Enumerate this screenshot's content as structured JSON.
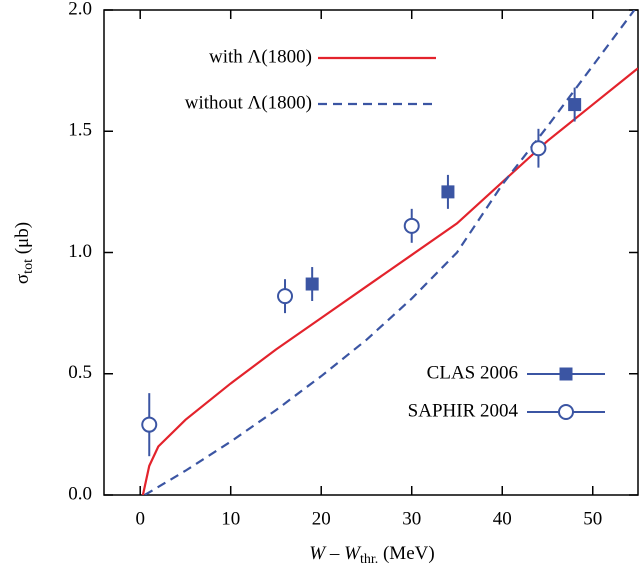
{
  "chart_data": {
    "type": "line",
    "xlabel": [
      "W",
      " – ",
      "W",
      "thr.",
      " (MeV)"
    ],
    "ylabel": [
      "σ",
      "tot",
      " (μb)"
    ],
    "xlim": [
      -4,
      55
    ],
    "ylim": [
      0,
      2.0
    ],
    "xticks": [
      0,
      10,
      20,
      30,
      40,
      50
    ],
    "yticks": [
      {
        "value": 0,
        "label": "0.0"
      },
      {
        "value": 0.5,
        "label": "0.5"
      },
      {
        "value": 1,
        "label": "1.0"
      },
      {
        "value": 1.5,
        "label": "1.5"
      },
      {
        "value": 2,
        "label": "2.0"
      }
    ],
    "series": [
      {
        "name": "with Λ(1800)",
        "color": "#e3232c",
        "style": "solid",
        "x": [
          0.3,
          1,
          2,
          5,
          10,
          15,
          20,
          25,
          30,
          35,
          40,
          45,
          50,
          55
        ],
        "values": [
          0,
          0.12,
          0.2,
          0.31,
          0.46,
          0.6,
          0.73,
          0.86,
          0.99,
          1.12,
          1.29,
          1.46,
          1.61,
          1.76
        ]
      },
      {
        "name": "without Λ(1800)",
        "color": "#3b55a3",
        "style": "dashed",
        "x": [
          0.5,
          5,
          10,
          15,
          20,
          25,
          30,
          35,
          40,
          45,
          50,
          54.6
        ],
        "values": [
          0,
          0.1,
          0.22,
          0.35,
          0.49,
          0.64,
          0.81,
          1.0,
          1.28,
          1.52,
          1.77,
          2.0
        ]
      },
      {
        "name": "CLAS 2006",
        "color": "#3b55a3",
        "marker": "filled-square",
        "x": [
          19,
          34,
          48
        ],
        "values": [
          0.87,
          1.25,
          1.61
        ],
        "errors": [
          0.07,
          0.07,
          0.07
        ]
      },
      {
        "name": "SAPHIR 2004",
        "color": "#3b55a3",
        "marker": "open-circle",
        "x": [
          1,
          16,
          30,
          44
        ],
        "values": [
          0.29,
          0.82,
          1.11,
          1.43
        ],
        "errors": [
          0.13,
          0.07,
          0.07,
          0.08
        ]
      }
    ]
  }
}
